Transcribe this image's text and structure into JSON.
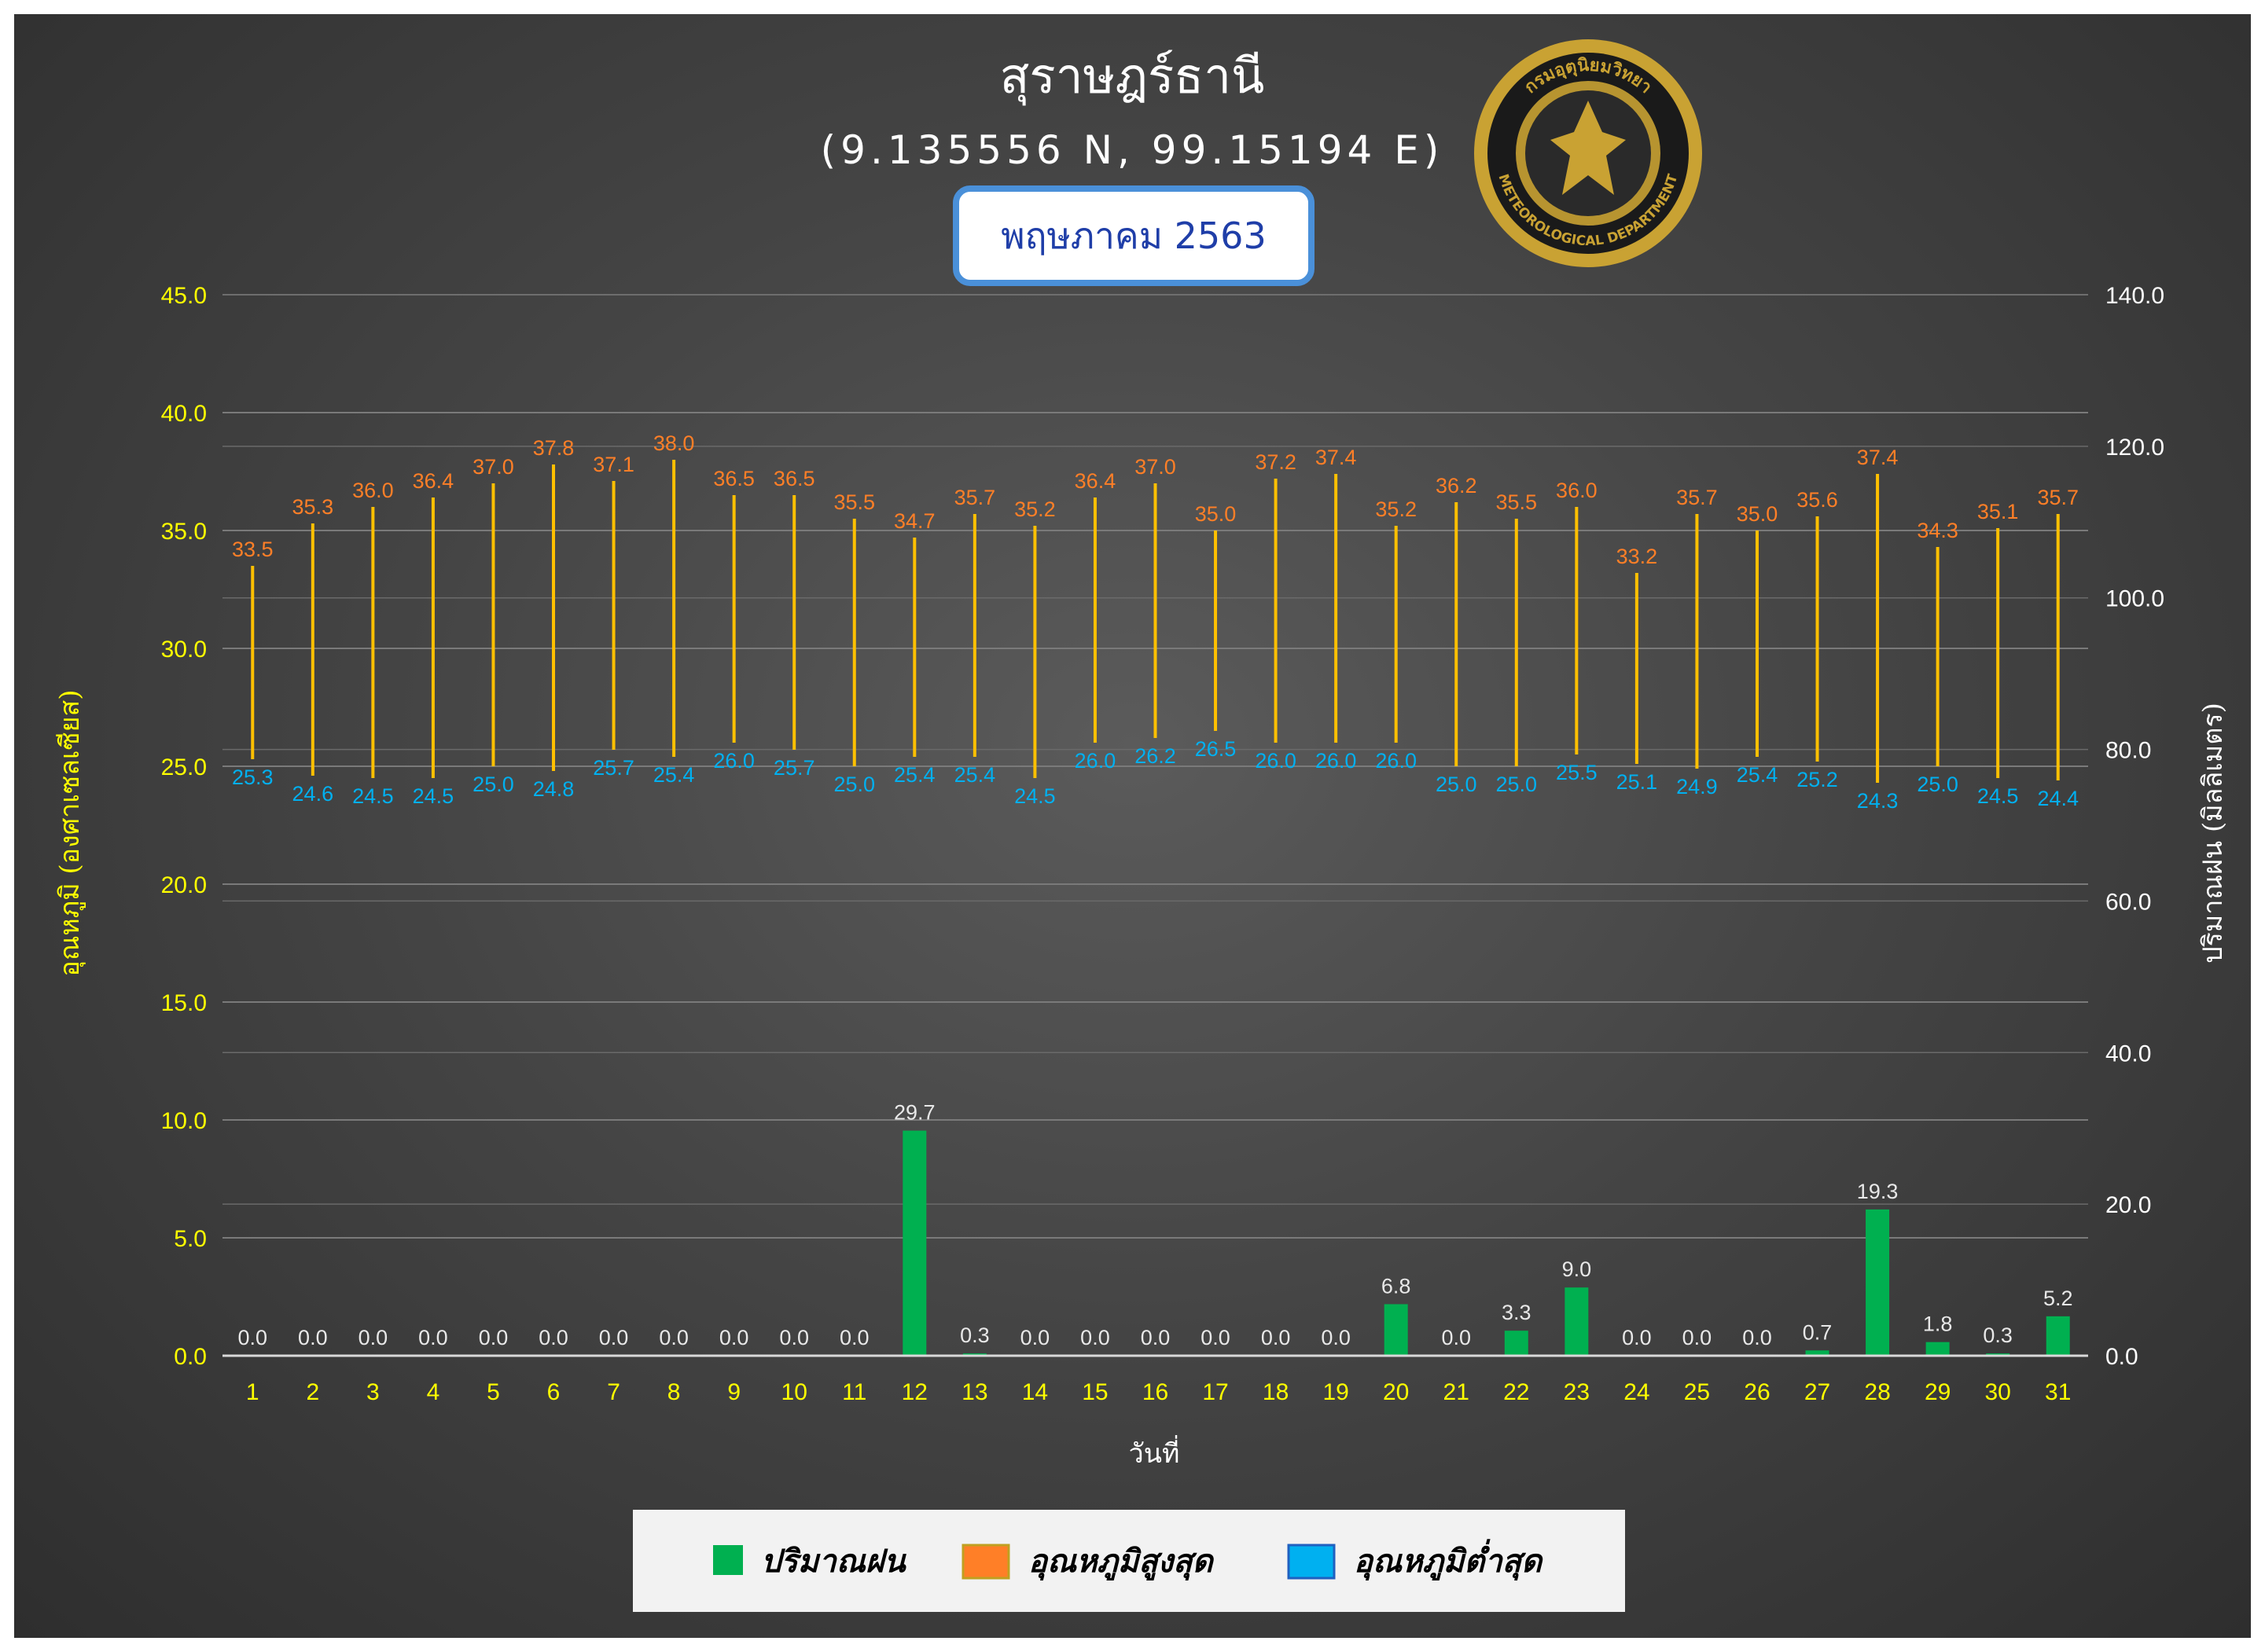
{
  "header": {
    "title": "สุราษฎร์ธานี",
    "coords": "(9.135556 N, 99.15194 E)",
    "month_badge": "พฤษภาคม 2563",
    "logo_text_top": "กรมอุตุนิยมวิทยา",
    "logo_text_bottom": "METEOROLOGICAL DEPARTMENT"
  },
  "colors": {
    "rain": "#00b050",
    "tmax": "#ff7f27",
    "tmin": "#00b0f0",
    "range_line": "#ffc000",
    "axis_text": "#ffff00",
    "badge_border": "#4a90d9",
    "badge_text": "#1f3ea8"
  },
  "chart_data": {
    "type": "bar",
    "xlabel": "วันที่",
    "ylabel_left": "อุณหภูมิ (องศาเซลเซียส)",
    "ylabel_right": "ปริมาณฝน (มิลลิเมตร)",
    "ylim_left": [
      0,
      45
    ],
    "ylim_right": [
      0,
      140
    ],
    "yticks_left": [
      "0.0",
      "5.0",
      "10.0",
      "15.0",
      "20.0",
      "25.0",
      "30.0",
      "35.0",
      "40.0",
      "45.0"
    ],
    "yticks_right": [
      "0.0",
      "20.0",
      "40.0",
      "60.0",
      "80.0",
      "100.0",
      "120.0",
      "140.0"
    ],
    "grid": true,
    "legend_position": "bottom",
    "categories": [
      "1",
      "2",
      "3",
      "4",
      "5",
      "6",
      "7",
      "8",
      "9",
      "10",
      "11",
      "12",
      "13",
      "14",
      "15",
      "16",
      "17",
      "18",
      "19",
      "20",
      "21",
      "22",
      "23",
      "24",
      "25",
      "26",
      "27",
      "28",
      "29",
      "30",
      "31"
    ],
    "series": [
      {
        "name": "ปริมาณฝน",
        "axis": "right",
        "kind": "bar",
        "values": [
          0.0,
          0.0,
          0.0,
          0.0,
          0.0,
          0.0,
          0.0,
          0.0,
          0.0,
          0.0,
          0.0,
          29.7,
          0.3,
          0.0,
          0.0,
          0.0,
          0.0,
          0.0,
          0.0,
          6.8,
          0.0,
          3.3,
          9.0,
          0.0,
          0.0,
          0.0,
          0.7,
          19.3,
          1.8,
          0.3,
          5.2
        ]
      },
      {
        "name": "อุณหภูมิสูงสุด",
        "axis": "left",
        "kind": "range-top",
        "values": [
          33.5,
          35.3,
          36.0,
          36.4,
          37.0,
          37.8,
          37.1,
          38.0,
          36.5,
          36.5,
          35.5,
          34.7,
          35.7,
          35.2,
          36.4,
          37.0,
          35.0,
          37.2,
          37.4,
          35.2,
          36.2,
          35.5,
          36.0,
          33.2,
          35.7,
          35.0,
          35.6,
          37.4,
          34.3,
          35.1,
          35.7
        ]
      },
      {
        "name": "อุณหภูมิต่ำสุด",
        "axis": "left",
        "kind": "range-bottom",
        "values": [
          25.3,
          24.6,
          24.5,
          24.5,
          25.0,
          24.8,
          25.7,
          25.4,
          26.0,
          25.7,
          25.0,
          25.4,
          25.4,
          24.5,
          26.0,
          26.2,
          26.5,
          26.0,
          26.0,
          26.0,
          25.0,
          25.0,
          25.5,
          25.1,
          24.9,
          25.4,
          25.2,
          24.3,
          25.0,
          24.5,
          24.4
        ]
      }
    ]
  }
}
